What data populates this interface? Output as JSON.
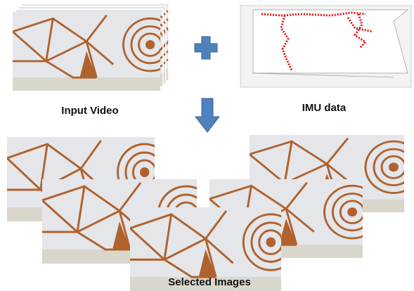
{
  "inputs": {
    "video": {
      "label": "Input Video"
    },
    "imu": {
      "label": "IMU data"
    }
  },
  "output": {
    "label": "Selected Images"
  }
}
